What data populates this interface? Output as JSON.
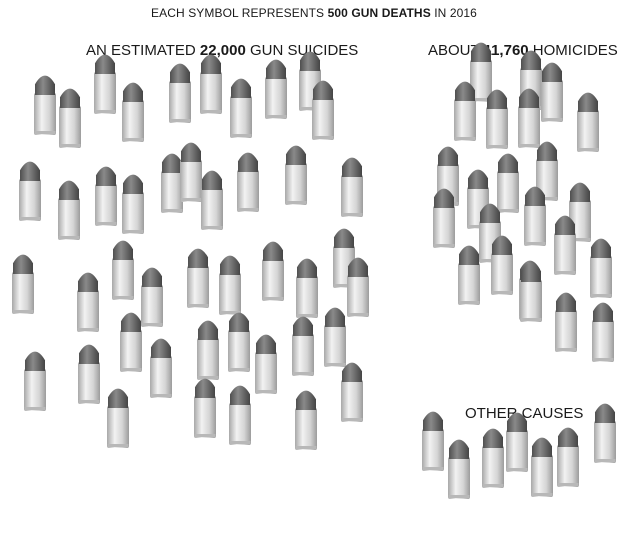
{
  "header": {
    "prefix": "EACH SYMBOL REPRESENTS ",
    "bold": "500 GUN DEATHS",
    "suffix": " IN 2016"
  },
  "groups": {
    "suicides": {
      "prefix": "AN ESTIMATED ",
      "bold": "22,000",
      "suffix": " GUN SUICIDES"
    },
    "homicides": {
      "prefix": "ABOUT ",
      "bold": "11,760",
      "suffix": " HOMICIDES"
    },
    "other": {
      "prefix": "",
      "bold": "",
      "suffix": "OTHER CAUSES"
    }
  },
  "chart_data": {
    "type": "pictogram",
    "unit_value": 500,
    "unit": "gun deaths",
    "year": 2016,
    "categories": [
      "Gun suicides",
      "Homicides",
      "Other causes"
    ],
    "values": [
      22000,
      11760,
      3500
    ],
    "symbol_counts": [
      44,
      23,
      7
    ],
    "icon": "bullet-icon"
  },
  "colors": {
    "background": "#ffffff",
    "bullet_tip": "#6b6b6b",
    "bullet_casing": "#d9d9d9"
  }
}
